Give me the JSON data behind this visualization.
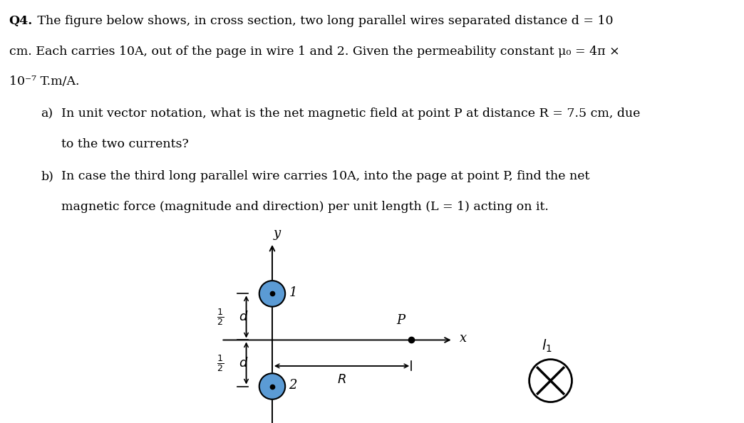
{
  "bg_color": "#ffffff",
  "text_color": "#000000",
  "title_bold": "Q4.",
  "title_rest": " The figure below shows, in cross section, two long parallel wires separated distance d = 10",
  "title_line2": "cm. Each carries 10A, out of the page in wire 1 and 2. Given the permeability constant μ₀ = 4π ×",
  "title_line3": "10⁻⁷ T.m/A.",
  "part_a_label": "a)",
  "part_a_text": "In unit vector notation, what is the net magnetic field at point P at distance R = 7.5 cm, due",
  "part_a2_text": "to the two currents?",
  "part_b_label": "b)",
  "part_b_text": "In case the third long parallel wire carries 10A, into the page at point P, find the net",
  "part_b2_text": "magnetic force (magnitude and direction) per unit length (L = 1) acting on it.",
  "wire1_label": "1",
  "wire2_label": "2",
  "point_P_label": "P",
  "x_label": "x",
  "y_label": "y",
  "R_label": "R",
  "wire_circle_color": "#5b9bd5",
  "fig_width": 10.44,
  "fig_height": 5.94,
  "font_size": 12.5
}
